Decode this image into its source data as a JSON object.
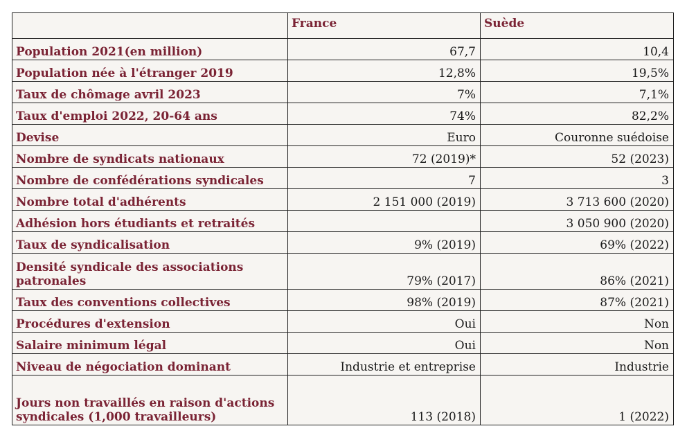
{
  "table": {
    "columns": [
      "",
      "France",
      "Suède"
    ],
    "rows": [
      {
        "label": "Population 2021(en million)",
        "france": "67,7",
        "suede": "10,4"
      },
      {
        "label": "Population née à l'étranger 2019",
        "france": "12,8%",
        "suede": "19,5%"
      },
      {
        "label": "Taux de chômage avril 2023",
        "france": "7%",
        "suede": "7,1%"
      },
      {
        "label": "Taux d'emploi 2022, 20-64 ans",
        "france": "74%",
        "suede": "82,2%"
      },
      {
        "label": "Devise",
        "france": "Euro",
        "suede": "Couronne suédoise"
      },
      {
        "label": "Nombre de syndicats nationaux",
        "france": "72 (2019)*",
        "suede": "52 (2023)"
      },
      {
        "label": "Nombre de confédérations syndicales",
        "france": "7",
        "suede": "3"
      },
      {
        "label": "Nombre total d'adhérents",
        "france": "2 151 000 (2019)",
        "suede": "3 713 600 (2020)"
      },
      {
        "label": "Adhésion hors étudiants et retraités",
        "france": "",
        "suede": "3 050 900 (2020)"
      },
      {
        "label": "Taux de syndicalisation",
        "france": "9% (2019)",
        "suede": "69% (2022)"
      },
      {
        "label": "Densité syndicale des associations patronales",
        "france": "79% (2017)",
        "suede": "86% (2021)"
      },
      {
        "label": "Taux des conventions collectives",
        "france": "98% (2019)",
        "suede": "87% (2021)"
      },
      {
        "label": "Procédures d'extension",
        "france": "Oui",
        "suede": "Non"
      },
      {
        "label": "Salaire minimum légal",
        "france": "Oui",
        "suede": "Non"
      },
      {
        "label": "Niveau de négociation dominant",
        "france": "Industrie et entreprise",
        "suede": "Industrie"
      },
      {
        "label": "Jours non travaillés en raison d'actions syndicales (1,000 travailleurs)",
        "france": "113 (2018)",
        "suede": "1 (2022)"
      }
    ]
  },
  "colors": {
    "label": "#7a2334",
    "background": "#f7f5f2",
    "border": "#1f1f1f"
  }
}
